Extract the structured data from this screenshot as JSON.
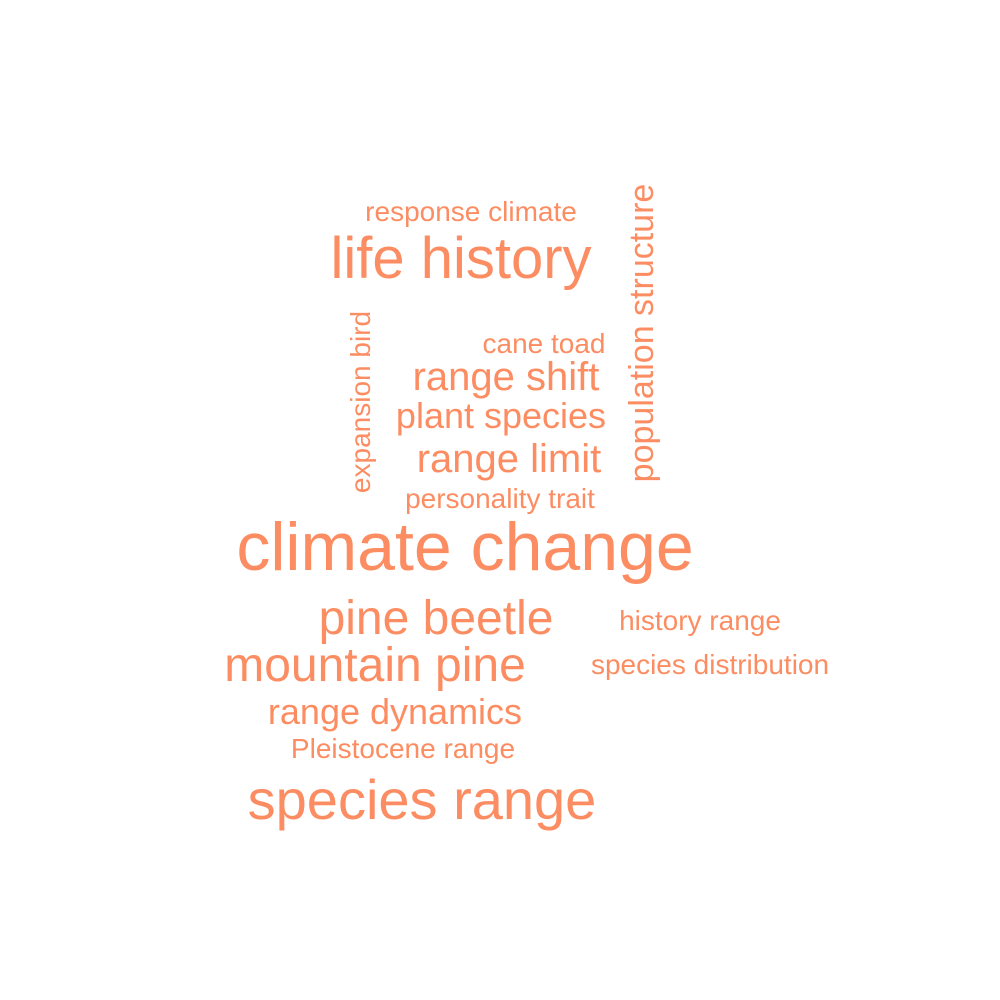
{
  "word_color": "#FC8D62",
  "words": [
    {
      "text": "climate change",
      "weight": 5
    },
    {
      "text": "species range",
      "weight": 4
    },
    {
      "text": "life history",
      "weight": 4
    },
    {
      "text": "mountain pine",
      "weight": 3
    },
    {
      "text": "pine beetle",
      "weight": 3
    },
    {
      "text": "range shift",
      "weight": 3
    },
    {
      "text": "range limit",
      "weight": 3
    },
    {
      "text": "population structure",
      "weight": 2
    },
    {
      "text": "plant species",
      "weight": 2
    },
    {
      "text": "range dynamics",
      "weight": 2
    },
    {
      "text": "expansion bird",
      "weight": 1
    },
    {
      "text": "response climate",
      "weight": 1
    },
    {
      "text": "cane toad",
      "weight": 1
    },
    {
      "text": "personality trait",
      "weight": 1
    },
    {
      "text": "history range",
      "weight": 1
    },
    {
      "text": "species distribution",
      "weight": 1
    },
    {
      "text": "Pleistocene range",
      "weight": 1
    }
  ]
}
